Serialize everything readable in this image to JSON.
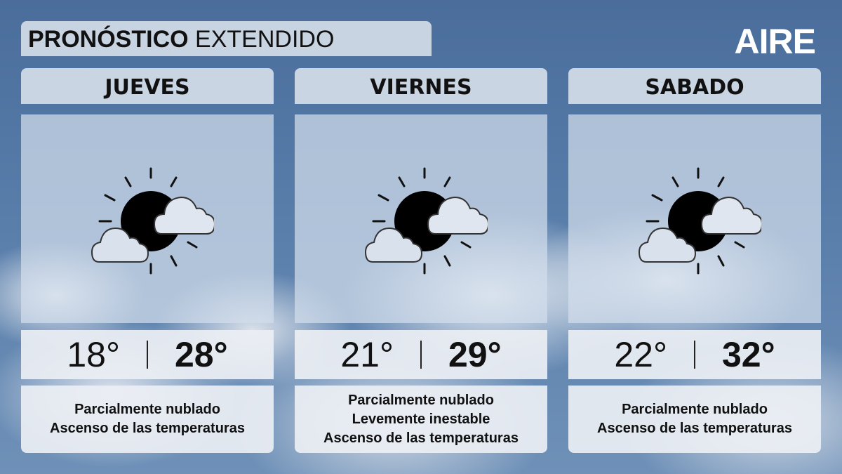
{
  "title": {
    "bold": "PRONÓSTICO",
    "regular": "EXTENDIDO"
  },
  "logo": "AIRE",
  "days": [
    {
      "name": "JUEVES",
      "min": "18°",
      "max": "28°",
      "icon": "partly-cloudy-icon",
      "desc": [
        "Parcialmente nublado",
        "Ascenso de las temperaturas"
      ]
    },
    {
      "name": "VIERNES",
      "min": "21°",
      "max": "29°",
      "icon": "partly-cloudy-icon",
      "desc": [
        "Parcialmente nublado",
        "Levemente inestable",
        "Ascenso de las temperaturas"
      ]
    },
    {
      "name": "SABADO",
      "min": "22°",
      "max": "32°",
      "icon": "partly-cloudy-icon",
      "desc": [
        "Parcialmente nublado",
        "Ascenso de las temperaturas"
      ]
    }
  ]
}
